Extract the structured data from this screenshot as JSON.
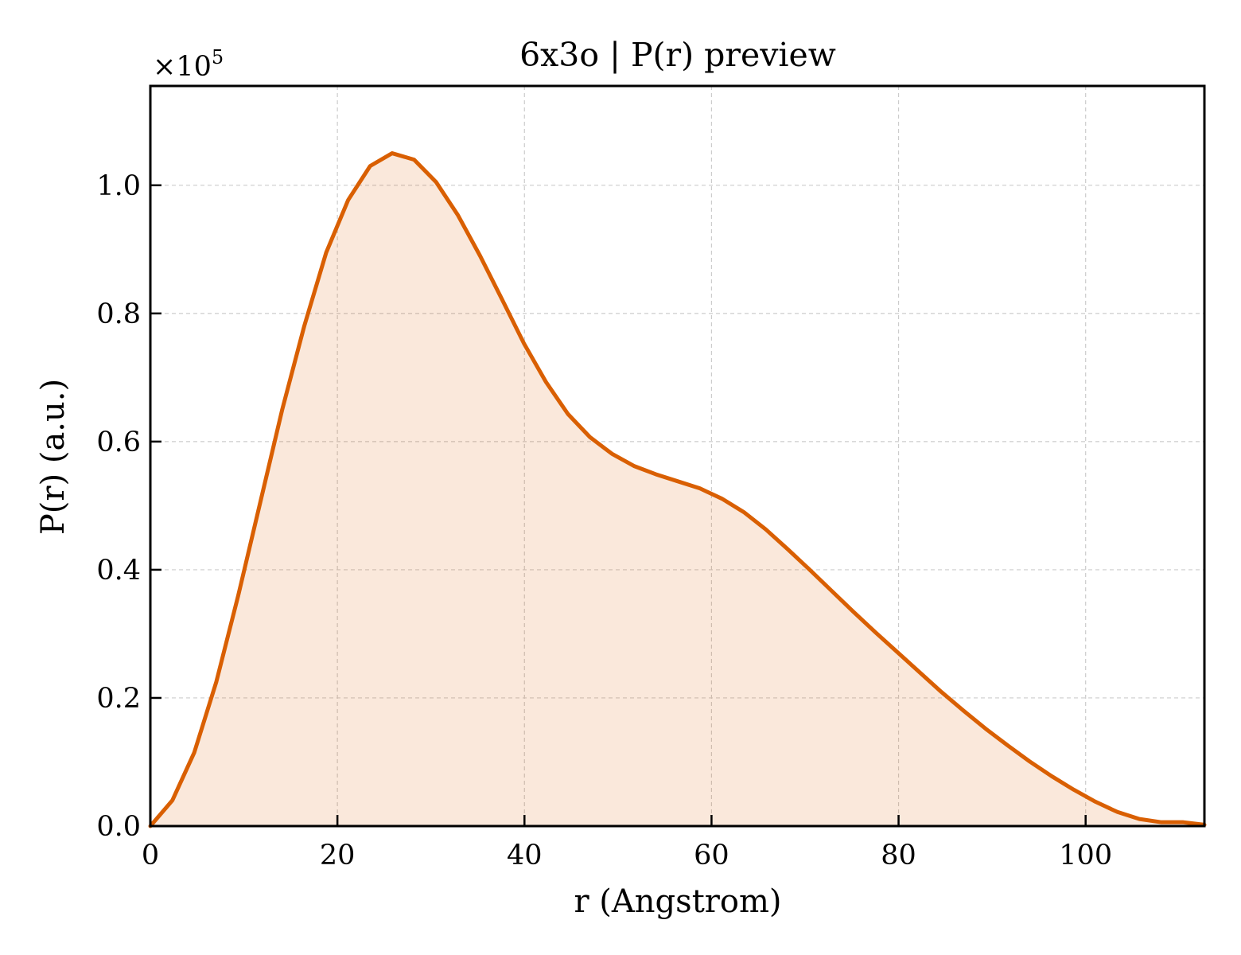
{
  "chart_data": {
    "type": "area",
    "title": "6x3o | P(r) preview",
    "xlabel": "r (Angstrom)",
    "ylabel": "P(r) (a.u.)",
    "y_offset_label": {
      "base": "×10",
      "exponent": "5"
    },
    "xlim": [
      0,
      112.7
    ],
    "ylim": [
      0,
      1.155
    ],
    "x_ticks": [
      0,
      20,
      40,
      60,
      80,
      100
    ],
    "x_tick_labels": [
      "0",
      "20",
      "40",
      "60",
      "80",
      "100"
    ],
    "y_ticks": [
      0,
      0.2,
      0.4,
      0.6,
      0.8,
      1.0
    ],
    "y_tick_labels": [
      "0.0",
      "0.2",
      "0.4",
      "0.6",
      "0.8",
      "1.0"
    ],
    "grid": true,
    "tick_direction": "in",
    "colors": {
      "line": "#d95f02",
      "fill": "#d95f02",
      "fill_opacity": 0.14,
      "grid": "#cccccc",
      "frame": "#000000"
    },
    "series": [
      {
        "x": [
          0,
          2.35,
          4.7,
          7.05,
          9.4,
          11.75,
          14.1,
          16.45,
          18.8,
          21.15,
          23.5,
          25.85,
          28.2,
          30.55,
          32.9,
          35.25,
          37.6,
          39.95,
          42.3,
          44.65,
          47.0,
          49.35,
          51.7,
          54.05,
          56.4,
          58.75,
          61.1,
          63.45,
          65.8,
          68.15,
          70.5,
          72.85,
          75.2,
          77.55,
          79.9,
          82.25,
          84.6,
          86.95,
          89.3,
          91.65,
          94.0,
          96.35,
          98.7,
          101.05,
          103.4,
          105.75,
          108.1,
          110.45,
          112.7
        ],
        "y": [
          0.0,
          0.04,
          0.115,
          0.225,
          0.36,
          0.505,
          0.65,
          0.78,
          0.895,
          0.977,
          1.03,
          1.05,
          1.04,
          1.005,
          0.953,
          0.89,
          0.822,
          0.753,
          0.693,
          0.643,
          0.607,
          0.581,
          0.562,
          0.549,
          0.538,
          0.527,
          0.511,
          0.49,
          0.463,
          0.432,
          0.4,
          0.367,
          0.334,
          0.302,
          0.271,
          0.24,
          0.209,
          0.18,
          0.152,
          0.126,
          0.101,
          0.078,
          0.057,
          0.038,
          0.022,
          0.011,
          0.006,
          0.006,
          0.002
        ]
      }
    ]
  }
}
